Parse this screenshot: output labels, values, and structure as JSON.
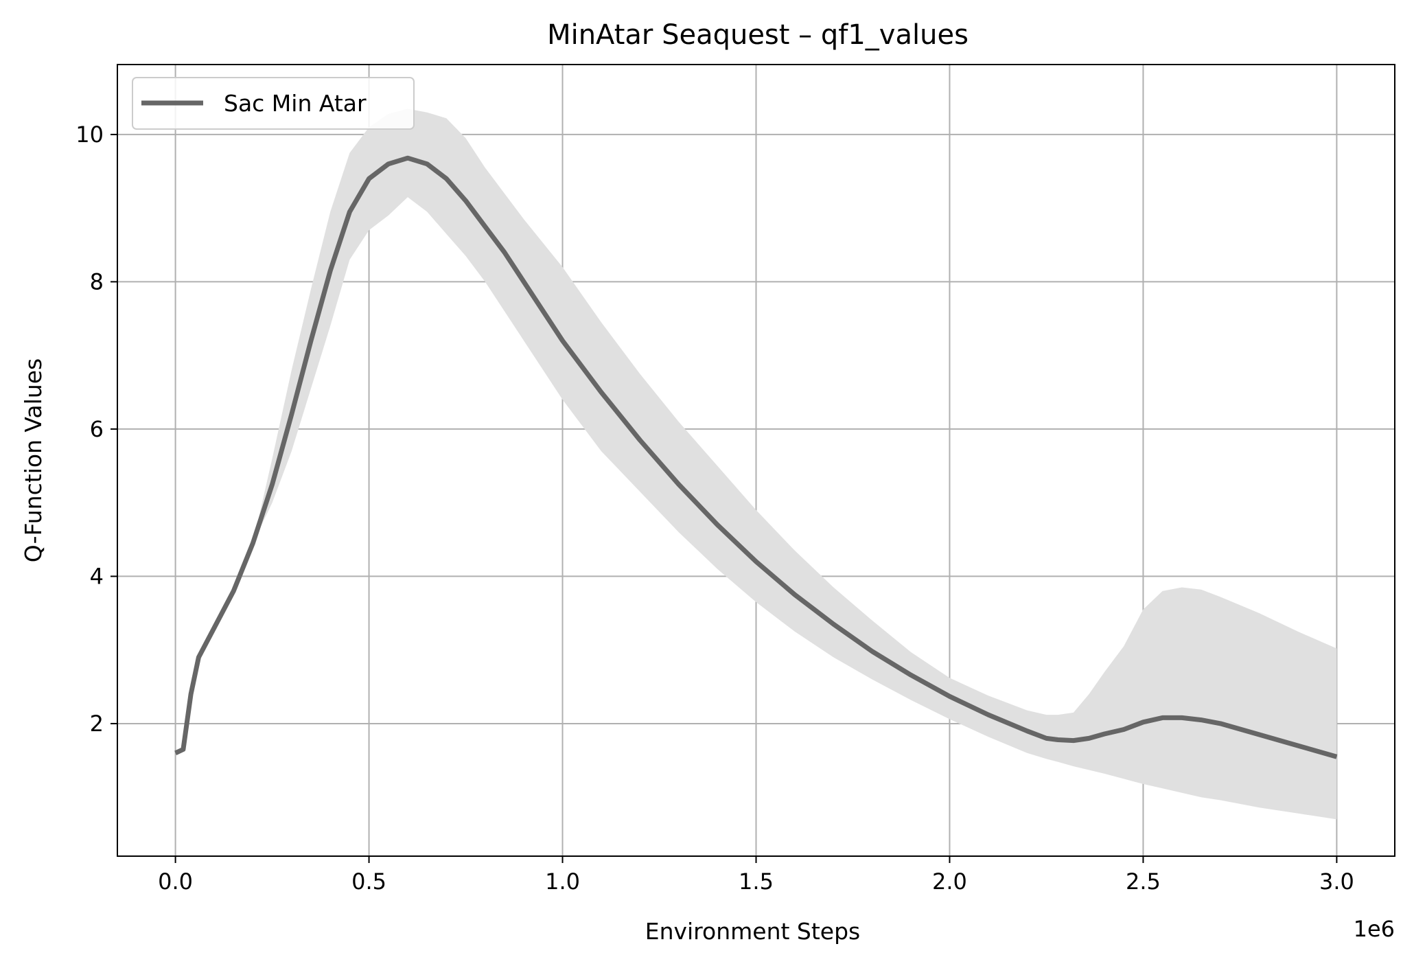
{
  "chart_data": {
    "type": "line",
    "title": "MinAtar Seaquest – qf1_values",
    "xlabel": "Environment Steps",
    "ylabel": "Q-Function Values",
    "x_offset_label": "1e6",
    "xlim": [
      -0.15,
      3.15
    ],
    "ylim": [
      0.2,
      10.95
    ],
    "x_ticks": [
      0.0,
      0.5,
      1.0,
      1.5,
      2.0,
      2.5,
      3.0
    ],
    "x_tick_labels": [
      "0.0",
      "0.5",
      "1.0",
      "1.5",
      "2.0",
      "2.5",
      "3.0"
    ],
    "y_ticks": [
      2,
      4,
      6,
      8,
      10
    ],
    "y_tick_labels": [
      "2",
      "4",
      "6",
      "8",
      "10"
    ],
    "grid": true,
    "legend_position": "top-left",
    "colors": {
      "line": "#666666",
      "band": "#e0e0e0",
      "grid": "#b0b0b0"
    },
    "series": [
      {
        "name": "Sac Min Atar",
        "x": [
          0.0,
          0.02,
          0.04,
          0.06,
          0.1,
          0.15,
          0.2,
          0.25,
          0.3,
          0.35,
          0.4,
          0.45,
          0.5,
          0.55,
          0.6,
          0.65,
          0.7,
          0.75,
          0.8,
          0.85,
          0.9,
          1.0,
          1.1,
          1.2,
          1.3,
          1.4,
          1.5,
          1.6,
          1.7,
          1.8,
          1.9,
          2.0,
          2.1,
          2.2,
          2.25,
          2.28,
          2.32,
          2.36,
          2.4,
          2.45,
          2.5,
          2.55,
          2.6,
          2.65,
          2.7,
          2.8,
          2.9,
          3.0
        ],
        "y": [
          1.6,
          1.65,
          2.4,
          2.9,
          3.3,
          3.8,
          4.45,
          5.25,
          6.2,
          7.2,
          8.15,
          8.95,
          9.4,
          9.6,
          9.68,
          9.6,
          9.4,
          9.1,
          8.75,
          8.4,
          8.0,
          7.2,
          6.5,
          5.85,
          5.25,
          4.7,
          4.2,
          3.75,
          3.35,
          2.98,
          2.66,
          2.37,
          2.12,
          1.9,
          1.8,
          1.78,
          1.77,
          1.8,
          1.86,
          1.92,
          2.02,
          2.08,
          2.08,
          2.05,
          2.0,
          1.85,
          1.7,
          1.55
        ],
        "lower": [
          1.6,
          1.65,
          2.4,
          2.9,
          3.3,
          3.8,
          4.45,
          5.0,
          5.7,
          6.55,
          7.4,
          8.3,
          8.7,
          8.9,
          9.15,
          8.95,
          8.65,
          8.35,
          8.0,
          7.6,
          7.2,
          6.4,
          5.7,
          5.15,
          4.6,
          4.1,
          3.65,
          3.25,
          2.9,
          2.6,
          2.32,
          2.06,
          1.82,
          1.6,
          1.52,
          1.48,
          1.42,
          1.37,
          1.32,
          1.25,
          1.18,
          1.12,
          1.06,
          1.0,
          0.96,
          0.86,
          0.78,
          0.7
        ],
        "upper": [
          1.6,
          1.65,
          2.4,
          2.9,
          3.3,
          3.8,
          4.45,
          5.6,
          6.8,
          7.9,
          8.95,
          9.75,
          10.1,
          10.28,
          10.35,
          10.3,
          10.22,
          9.95,
          9.55,
          9.2,
          8.85,
          8.2,
          7.45,
          6.75,
          6.1,
          5.5,
          4.9,
          4.35,
          3.85,
          3.4,
          2.97,
          2.62,
          2.38,
          2.18,
          2.12,
          2.12,
          2.15,
          2.4,
          2.7,
          3.05,
          3.55,
          3.8,
          3.85,
          3.82,
          3.72,
          3.5,
          3.25,
          3.02
        ]
      }
    ]
  }
}
